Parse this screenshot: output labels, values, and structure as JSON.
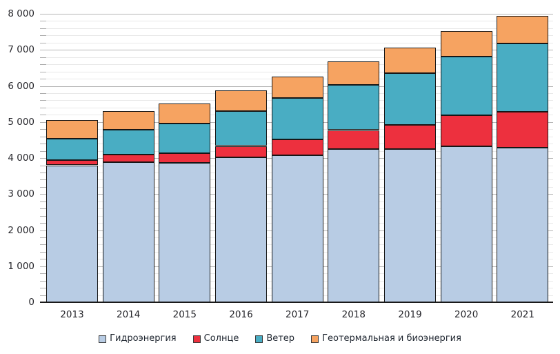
{
  "chart_data": {
    "type": "bar",
    "stacked": true,
    "title": "",
    "categories": [
      "2013",
      "2014",
      "2015",
      "2016",
      "2017",
      "2018",
      "2019",
      "2020",
      "2021"
    ],
    "series": [
      {
        "key": "hydro",
        "name": "Гидроэнергия",
        "color": "#B8CCE4",
        "values": [
          3800,
          3880,
          3865,
          4020,
          4070,
          4245,
          4250,
          4320,
          4280
        ]
      },
      {
        "key": "solar",
        "name": "Солнце",
        "color": "#ED303E",
        "values": [
          140,
          210,
          270,
          315,
          450,
          530,
          675,
          870,
          1010
        ]
      },
      {
        "key": "wind",
        "name": "Ветер",
        "color": "#49ADC3",
        "values": [
          600,
          690,
          830,
          970,
          1140,
          1260,
          1425,
          1615,
          1890
        ]
      },
      {
        "key": "geo_bio",
        "name": "Геотермальная и биоэнергия",
        "color": "#F6A361",
        "values": [
          510,
          520,
          545,
          570,
          600,
          645,
          705,
          725,
          760
        ]
      }
    ],
    "totals": [
      5050,
      5300,
      5510,
      5875,
      6260,
      6680,
      7055,
      7530,
      7940
    ],
    "xlabel": "",
    "ylabel": "",
    "ylim": [
      0,
      8000
    ],
    "y_major_step": 1000,
    "y_minor_step": 200,
    "y_tick_labels": [
      "0",
      "1 000",
      "2 000",
      "3 000",
      "4 000",
      "5 000",
      "6 000",
      "7 000",
      "8 000"
    ],
    "grid": "horizontal major+minor",
    "legend_position": "bottom",
    "colors": {
      "axis_line": "#1A1A1A",
      "major_gridline": "#B5B5B5",
      "minor_gridline": "#E9E9E9",
      "bar_border": "#161616",
      "text": "#26262B"
    }
  }
}
